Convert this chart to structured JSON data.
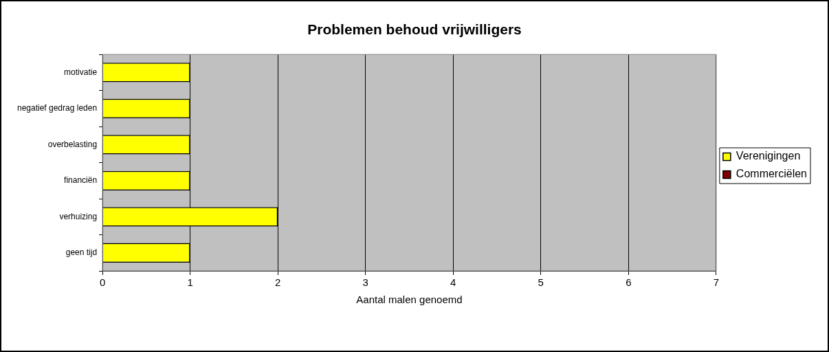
{
  "chart_data": {
    "type": "bar",
    "orientation": "horizontal",
    "title": "Problemen behoud vrijwilligers",
    "xlabel": "Aantal malen genoemd",
    "categories": [
      "motivatie",
      "negatief gedrag leden",
      "overbelasting",
      "financiën",
      "verhuizing",
      "geen tijd"
    ],
    "series": [
      {
        "name": "Verenigingen",
        "color": "#ffff00",
        "values": [
          1,
          1,
          1,
          1,
          2,
          1
        ]
      },
      {
        "name": "Commerciëlen",
        "color": "#800000",
        "values": [
          0,
          0,
          0,
          0,
          0,
          0
        ]
      }
    ],
    "xlim": [
      0,
      7
    ],
    "xticks": [
      0,
      1,
      2,
      3,
      4,
      5,
      6,
      7
    ],
    "grid": "x",
    "legend": "right"
  }
}
